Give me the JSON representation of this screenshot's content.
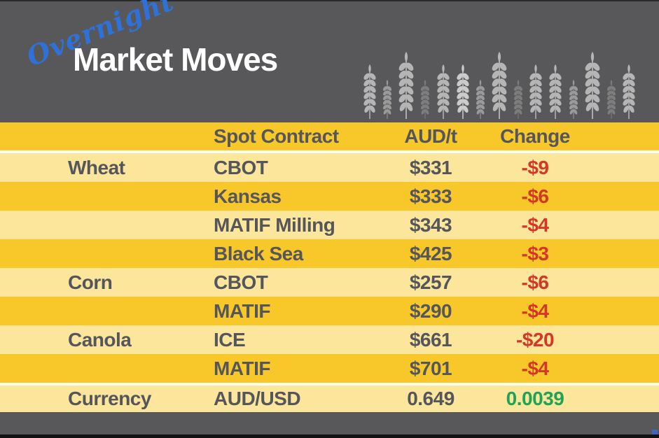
{
  "header": {
    "script_word": "Overnight",
    "title": "Market Moves",
    "wheat_pattern": [
      {
        "height": "medium",
        "shade": "light"
      },
      {
        "height": "short",
        "shade": "mid"
      },
      {
        "height": "tall",
        "shade": "light"
      },
      {
        "height": "short",
        "shade": "dim"
      },
      {
        "height": "medium",
        "shade": "light"
      },
      {
        "height": "medium",
        "shade": "bright"
      },
      {
        "height": "short",
        "shade": "mid"
      },
      {
        "height": "tall",
        "shade": "light"
      },
      {
        "height": "short",
        "shade": "dim"
      },
      {
        "height": "medium",
        "shade": "light"
      },
      {
        "height": "medium",
        "shade": "light"
      },
      {
        "height": "short",
        "shade": "mid"
      },
      {
        "height": "tall",
        "shade": "light"
      },
      {
        "height": "short",
        "shade": "dim"
      },
      {
        "height": "medium",
        "shade": "light"
      }
    ]
  },
  "icons": {
    "wheat": "wheat-stalk-icon"
  },
  "table": {
    "columns": {
      "category": "",
      "contract": "Spot Contract",
      "price": "AUD/t",
      "change": "Change"
    },
    "rows": [
      {
        "category": "Wheat",
        "contract": "CBOT",
        "price": "$331",
        "change": "-$9",
        "direction": "down"
      },
      {
        "category": "",
        "contract": "Kansas",
        "price": "$333",
        "change": "-$6",
        "direction": "down"
      },
      {
        "category": "",
        "contract": "MATIF Milling",
        "price": "$343",
        "change": "-$4",
        "direction": "down"
      },
      {
        "category": "",
        "contract": "Black Sea",
        "price": "$425",
        "change": "-$3",
        "direction": "down"
      },
      {
        "category": "Corn",
        "contract": "CBOT",
        "price": "$257",
        "change": "-$6",
        "direction": "down"
      },
      {
        "category": "",
        "contract": "MATIF",
        "price": "$290",
        "change": "-$4",
        "direction": "down"
      },
      {
        "category": "Canola",
        "contract": "ICE",
        "price": "$661",
        "change": "-$20",
        "direction": "down"
      },
      {
        "category": "",
        "contract": "MATIF",
        "price": "$701",
        "change": "-$4",
        "direction": "down"
      },
      {
        "category": "Currency",
        "contract": "AUD/USD",
        "price": "0.649",
        "change": "0.0039",
        "direction": "up"
      }
    ]
  },
  "colors": {
    "background_gray": "#58585a",
    "gold_row": "#f8c82b",
    "light_row": "#fce69c",
    "separator": "#fffdf2",
    "text_dark": "#54565b",
    "negative_red": "#d43627",
    "positive_green": "#1fa355",
    "script_blue": "#2e72d9",
    "title_white": "#ffffff",
    "bottom_bar": "#121212",
    "corner_mark_blue": "#3f66c0"
  }
}
